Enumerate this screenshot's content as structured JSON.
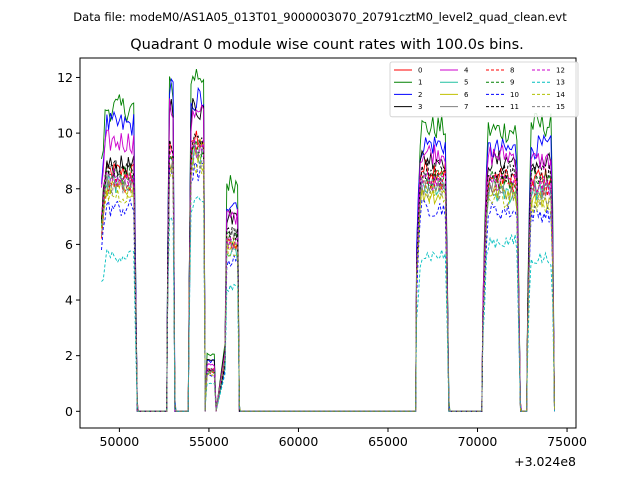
{
  "chart_data": {
    "type": "line",
    "suptitle": "Data file: modeM0/AS1A05_013T01_9000003070_20791cztM0_level2_quad_clean.evt",
    "title": "Quadrant 0 module wise count rates with 100.0s bins.",
    "xlabel": "",
    "ylabel": "",
    "x_offset_label": "+3.024e8",
    "xlim": [
      47800,
      75500
    ],
    "ylim": [
      -0.6,
      12.7
    ],
    "x_ticks": [
      50000,
      55000,
      60000,
      65000,
      70000,
      75000
    ],
    "y_ticks": [
      0,
      2,
      4,
      6,
      8,
      10,
      12
    ],
    "legend_loc": "upper right",
    "legend_ncol": 4,
    "grid": false,
    "segments": [
      {
        "x": [
          49000,
          51000
        ],
        "plateau_start": 0.8
      },
      {
        "x": [
          52700,
          53100
        ],
        "plateau_start": 0.5
      },
      {
        "x": [
          53900,
          54800
        ],
        "plateau_start": 0.4
      },
      {
        "x": [
          54800,
          55400
        ],
        "plateau_start": 0.2
      },
      {
        "x": [
          55900,
          56700
        ],
        "plateau_start": 0.3
      },
      {
        "x": [
          66600,
          68400
        ],
        "plateau_start": 0.6
      },
      {
        "x": [
          70300,
          72400
        ],
        "plateau_start": 0.4
      },
      {
        "x": [
          72800,
          74300
        ],
        "plateau_start": 0.4
      }
    ],
    "gaps": [
      {
        "x": [
          51000,
          52700
        ],
        "level": 0
      },
      {
        "x": [
          53100,
          53900
        ],
        "level": 0
      },
      {
        "x": [
          56700,
          66600
        ],
        "level": 0
      },
      {
        "x": [
          68400,
          70300
        ],
        "level": 0
      },
      {
        "x": [
          72400,
          72800
        ],
        "level": 0
      }
    ],
    "series": [
      {
        "name": "0",
        "color": "#ff0000",
        "dash": "solid",
        "levels": [
          8.6,
          9.5,
          9.8,
          1.5,
          6.0,
          8.7,
          8.4,
          8.4
        ]
      },
      {
        "name": "1",
        "color": "#008000",
        "dash": "solid",
        "levels": [
          10.9,
          11.6,
          12.1,
          2.0,
          8.2,
          10.2,
          10.1,
          10.3
        ]
      },
      {
        "name": "2",
        "color": "#0000ff",
        "dash": "solid",
        "levels": [
          10.3,
          11.6,
          11.2,
          1.8,
          7.5,
          9.6,
          9.4,
          9.5
        ]
      },
      {
        "name": "3",
        "color": "#000000",
        "dash": "solid",
        "levels": [
          8.8,
          11.0,
          10.9,
          1.9,
          7.0,
          9.1,
          9.0,
          8.9
        ]
      },
      {
        "name": "4",
        "color": "#cc00cc",
        "dash": "solid",
        "levels": [
          9.7,
          10.8,
          10.6,
          1.7,
          7.0,
          9.3,
          9.2,
          9.0
        ]
      },
      {
        "name": "5",
        "color": "#20c0a0",
        "dash": "solid",
        "levels": [
          8.2,
          9.0,
          9.2,
          1.4,
          5.6,
          8.0,
          7.8,
          7.9
        ]
      },
      {
        "name": "6",
        "color": "#c0c000",
        "dash": "solid",
        "levels": [
          8.0,
          8.8,
          9.4,
          1.4,
          6.1,
          7.8,
          7.9,
          7.6
        ]
      },
      {
        "name": "7",
        "color": "#808080",
        "dash": "solid",
        "levels": [
          8.3,
          9.1,
          9.5,
          1.5,
          6.3,
          8.1,
          8.1,
          8.0
        ]
      },
      {
        "name": "8",
        "color": "#ff0000",
        "dash": "dashed",
        "levels": [
          8.2,
          9.0,
          9.3,
          1.4,
          6.0,
          8.3,
          8.2,
          8.1
        ]
      },
      {
        "name": "9",
        "color": "#008000",
        "dash": "dashed",
        "levels": [
          8.5,
          9.2,
          9.5,
          1.5,
          6.2,
          8.4,
          8.3,
          8.3
        ]
      },
      {
        "name": "10",
        "color": "#0000ff",
        "dash": "dashed",
        "levels": [
          7.3,
          8.4,
          8.6,
          1.3,
          5.4,
          7.3,
          7.2,
          7.1
        ]
      },
      {
        "name": "11",
        "color": "#000000",
        "dash": "dashed",
        "levels": [
          8.7,
          9.4,
          9.6,
          1.5,
          6.4,
          8.7,
          8.6,
          8.5
        ]
      },
      {
        "name": "12",
        "color": "#cc00cc",
        "dash": "dashed",
        "levels": [
          8.4,
          9.3,
          9.4,
          1.5,
          6.1,
          8.3,
          8.3,
          8.1
        ]
      },
      {
        "name": "13",
        "color": "#00bfbf",
        "dash": "dashed",
        "levels": [
          5.6,
          7.0,
          7.4,
          1.0,
          4.4,
          5.6,
          6.1,
          5.5
        ]
      },
      {
        "name": "14",
        "color": "#b0c000",
        "dash": "dashed",
        "levels": [
          7.8,
          8.6,
          8.9,
          1.3,
          5.8,
          7.8,
          7.6,
          7.4
        ]
      },
      {
        "name": "15",
        "color": "#808080",
        "dash": "dashed",
        "levels": [
          8.1,
          8.9,
          9.1,
          1.4,
          5.9,
          8.0,
          7.9,
          7.7
        ]
      }
    ]
  }
}
